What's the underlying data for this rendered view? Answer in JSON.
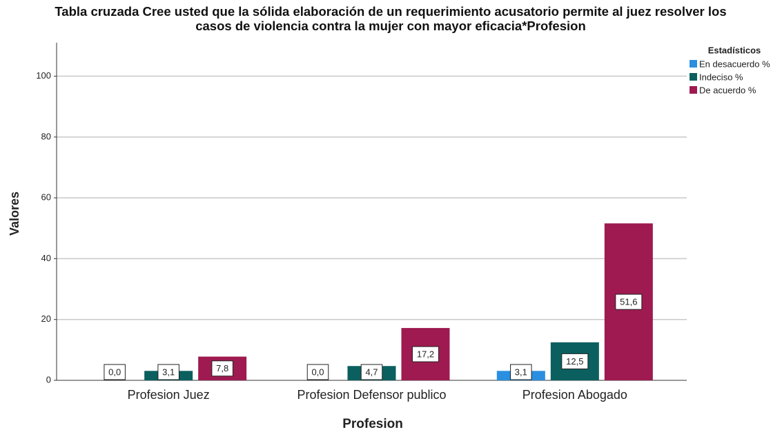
{
  "chart_data": {
    "type": "bar",
    "title": "Tabla cruzada Cree usted que la sólida elaboración de un requerimiento acusatorio permite al juez resolver los casos de violencia contra la mujer con mayor eficacia*Profesion",
    "x_label": "Profesion",
    "y_label": "Valores",
    "categories": [
      "Profesion Juez",
      "Profesion Defensor publico",
      "Profesion Abogado"
    ],
    "legend_title": "Estadísticos",
    "legend_position": "upper right",
    "series": [
      {
        "name": "En desacuerdo %",
        "color": "#2a8fe0",
        "values": [
          0.0,
          0.0,
          3.1
        ],
        "value_labels": [
          "0,0",
          "0,0",
          "3,1"
        ]
      },
      {
        "name": "Indeciso %",
        "color": "#0b5f5f",
        "values": [
          3.1,
          4.7,
          12.5
        ],
        "value_labels": [
          "3,1",
          "4,7",
          "12,5"
        ]
      },
      {
        "name": "De acuerdo %",
        "color": "#9e1a50",
        "values": [
          7.8,
          17.2,
          51.6
        ],
        "value_labels": [
          "7,8",
          "17,2",
          "51,6"
        ]
      }
    ],
    "ylim": [
      0,
      111
    ],
    "yticks": [
      0,
      20,
      40,
      60,
      80,
      100
    ],
    "grid": true
  }
}
